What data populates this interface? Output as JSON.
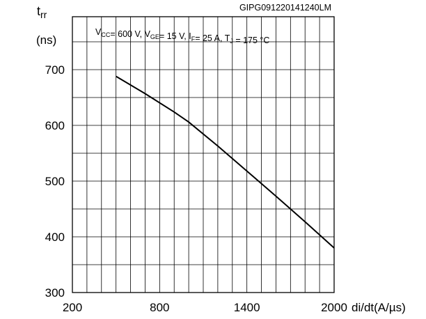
{
  "chart_data": {
    "type": "line",
    "code": "GIPG091220141240LM",
    "ylabel": "t",
    "ylabel_sub": "rr",
    "yunit": "(ns)",
    "xlabel": "di/dt(A/µs)",
    "conditions": [
      {
        "t": "V"
      },
      {
        "t": "CC",
        "sub": true
      },
      {
        "t": "= 600 V, V"
      },
      {
        "t": "GE",
        "sub": true
      },
      {
        "t": "= 15 V, I"
      },
      {
        "t": "F",
        "sub": true
      },
      {
        "t": "= 25 A, T"
      },
      {
        "t": "J",
        "sub": true
      },
      {
        "t": " = 175 °C"
      }
    ],
    "xlim": [
      200,
      2000
    ],
    "ylim": [
      300,
      700
    ],
    "x_ticks": [
      200,
      800,
      1400,
      2000
    ],
    "y_ticks": [
      300,
      400,
      500,
      600,
      700
    ],
    "grid": true,
    "series": [
      {
        "x": [
          500,
          700,
          900,
          1000,
          1200,
          1400,
          1600,
          1800,
          2000
        ],
        "y": [
          688,
          657,
          624,
          606,
          563,
          518,
          473,
          427,
          380
        ]
      }
    ]
  }
}
